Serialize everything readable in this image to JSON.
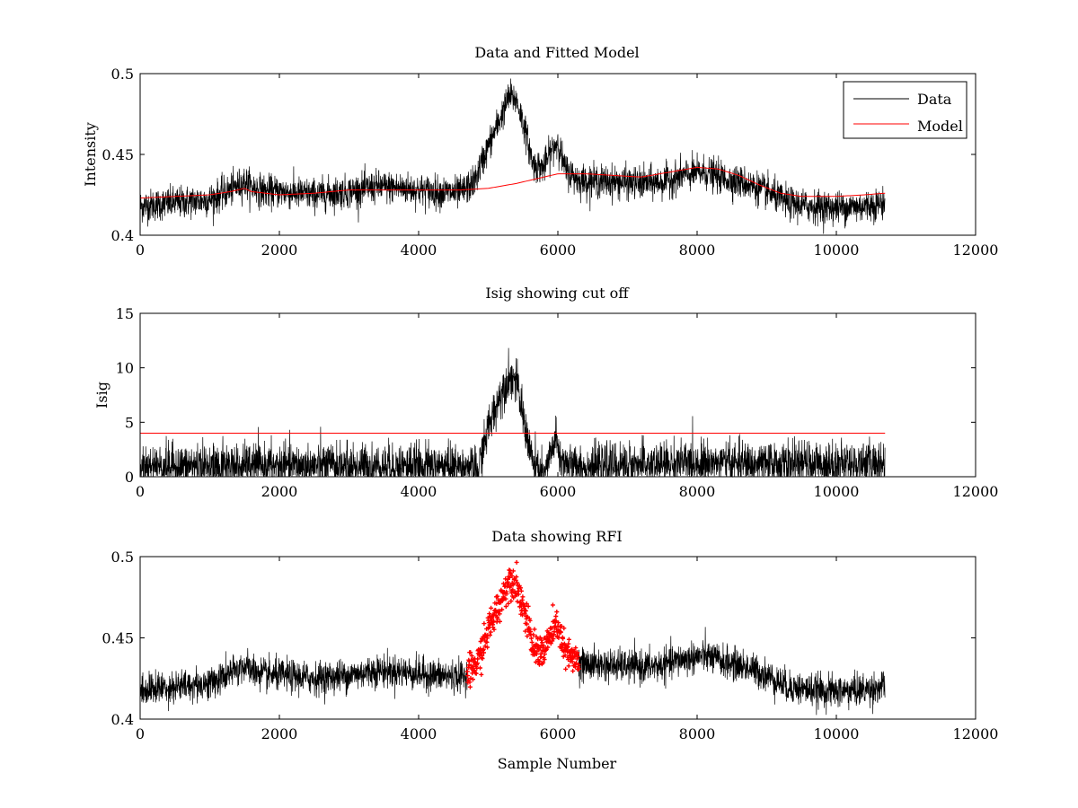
{
  "chart_data": [
    {
      "type": "line",
      "title": "Data and Fitted Model",
      "xlabel": "",
      "ylabel": "Intensity",
      "xlim": [
        0,
        12000
      ],
      "ylim": [
        0.4,
        0.5
      ],
      "xticks": [
        0,
        2000,
        4000,
        6000,
        8000,
        10000,
        12000
      ],
      "yticks": [
        0.4,
        0.45,
        0.5
      ],
      "xtick_labels": [
        "0",
        "2000",
        "4000",
        "6000",
        "8000",
        "10000",
        "12000"
      ],
      "ytick_labels": [
        "0.4",
        "0.45",
        "0.5"
      ],
      "grid": false,
      "legend": {
        "placement": "top-right",
        "entries": [
          "Data",
          "Model"
        ]
      },
      "series": [
        {
          "name": "Data",
          "color": "#000000",
          "style": "noisy-line",
          "noise": 0.005,
          "x": [
            0,
            500,
            1000,
            1300,
            1500,
            1600,
            1800,
            2000,
            2500,
            3000,
            3400,
            3800,
            4200,
            4600,
            4800,
            5000,
            5200,
            5300,
            5400,
            5500,
            5650,
            5800,
            5900,
            6000,
            6100,
            6300,
            6800,
            7200,
            7500,
            7800,
            8100,
            8400,
            8700,
            9000,
            9300,
            9600,
            10000,
            10400,
            10700
          ],
          "y": [
            0.418,
            0.42,
            0.422,
            0.428,
            0.433,
            0.43,
            0.427,
            0.427,
            0.425,
            0.427,
            0.43,
            0.429,
            0.427,
            0.426,
            0.433,
            0.455,
            0.475,
            0.486,
            0.484,
            0.47,
            0.443,
            0.442,
            0.452,
            0.458,
            0.441,
            0.434,
            0.433,
            0.432,
            0.433,
            0.437,
            0.439,
            0.435,
            0.432,
            0.427,
            0.42,
            0.418,
            0.417,
            0.418,
            0.42
          ]
        },
        {
          "name": "Model",
          "color": "#ff0000",
          "style": "line",
          "noise": 0,
          "x": [
            0,
            500,
            1000,
            1300,
            1500,
            1600,
            1800,
            2000,
            2500,
            3000,
            3400,
            3800,
            4200,
            4600,
            5000,
            5400,
            5800,
            6000,
            6400,
            6800,
            7200,
            7600,
            8000,
            8300,
            8600,
            8900,
            9200,
            9500,
            10000,
            10400,
            10700
          ],
          "y": [
            0.423,
            0.424,
            0.425,
            0.427,
            0.429,
            0.427,
            0.426,
            0.425,
            0.426,
            0.428,
            0.428,
            0.428,
            0.428,
            0.428,
            0.429,
            0.432,
            0.436,
            0.438,
            0.438,
            0.437,
            0.436,
            0.439,
            0.442,
            0.441,
            0.437,
            0.431,
            0.426,
            0.424,
            0.424,
            0.425,
            0.426
          ]
        }
      ]
    },
    {
      "type": "line",
      "title": "Isig showing cut off",
      "xlabel": "",
      "ylabel": "Isig",
      "xlim": [
        0,
        12000
      ],
      "ylim": [
        0,
        15
      ],
      "xticks": [
        0,
        2000,
        4000,
        6000,
        8000,
        10000,
        12000
      ],
      "yticks": [
        0,
        5,
        10,
        15
      ],
      "xtick_labels": [
        "0",
        "2000",
        "4000",
        "6000",
        "8000",
        "10000",
        "12000"
      ],
      "ytick_labels": [
        "0",
        "5",
        "10",
        "15"
      ],
      "grid": false,
      "series": [
        {
          "color": "#000000",
          "style": "noisy-line",
          "noise": 1.0,
          "min": 0,
          "x": [
            0,
            1000,
            2000,
            3000,
            4000,
            4700,
            4850,
            5000,
            5200,
            5300,
            5400,
            5500,
            5650,
            5800,
            5900,
            5960,
            6050,
            6200,
            7000,
            8000,
            9000,
            10000,
            10700
          ],
          "y": [
            1.0,
            1.0,
            1.0,
            1.0,
            1.0,
            0.9,
            0.5,
            4.5,
            8.0,
            9.2,
            8.8,
            5.5,
            1.0,
            0.2,
            2.0,
            3.6,
            1.4,
            1.0,
            1.0,
            1.3,
            1.1,
            1.2,
            1.2
          ]
        },
        {
          "color": "#ff0000",
          "style": "line",
          "noise": 0,
          "x": [
            0,
            10700
          ],
          "y": [
            4,
            4
          ]
        }
      ]
    },
    {
      "type": "line",
      "title": "Data showing RFI",
      "xlabel": "Sample Number",
      "ylabel": "",
      "xlim": [
        0,
        12000
      ],
      "ylim": [
        0.4,
        0.5
      ],
      "xticks": [
        0,
        2000,
        4000,
        6000,
        8000,
        10000,
        12000
      ],
      "yticks": [
        0.4,
        0.45,
        0.5
      ],
      "xtick_labels": [
        "0",
        "2000",
        "4000",
        "6000",
        "8000",
        "10000",
        "12000"
      ],
      "ytick_labels": [
        "0.4",
        "0.45",
        "0.5"
      ],
      "grid": false,
      "series": [
        {
          "color": "#000000",
          "style": "noisy-line",
          "noise": 0.005,
          "x": [
            0,
            500,
            1000,
            1300,
            1500,
            1600,
            1800,
            2000,
            2500,
            3000,
            3400,
            3800,
            4200,
            4600,
            4700,
            6300,
            6800,
            7200,
            7500,
            7800,
            8100,
            8400,
            8700,
            9000,
            9300,
            9600,
            10000,
            10400,
            10700
          ],
          "y": [
            0.418,
            0.42,
            0.422,
            0.428,
            0.433,
            0.43,
            0.427,
            0.427,
            0.425,
            0.427,
            0.43,
            0.429,
            0.427,
            0.426,
            0.427,
            0.434,
            0.433,
            0.432,
            0.433,
            0.437,
            0.439,
            0.435,
            0.432,
            0.427,
            0.42,
            0.418,
            0.417,
            0.418,
            0.42
          ],
          "skip": [
            4700,
            6300
          ]
        },
        {
          "color": "#ff0000",
          "style": "markers",
          "noise": 0.005,
          "x": [
            4700,
            4850,
            5000,
            5200,
            5300,
            5400,
            5500,
            5650,
            5800,
            5900,
            6000,
            6100,
            6300
          ],
          "y": [
            0.428,
            0.435,
            0.455,
            0.475,
            0.486,
            0.484,
            0.47,
            0.443,
            0.442,
            0.452,
            0.458,
            0.441,
            0.434
          ]
        }
      ]
    }
  ]
}
